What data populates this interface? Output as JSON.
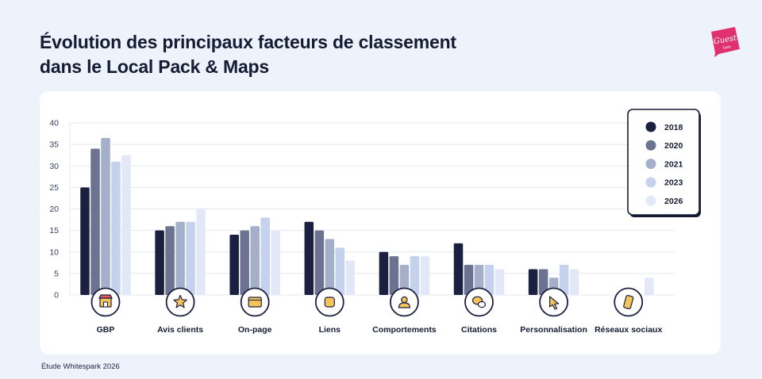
{
  "page": {
    "title_line1": "Évolution des principaux facteurs de classement",
    "title_line2": "dans le Local Pack & Maps",
    "source": "Étude Whitespark 2026",
    "logo_text": "Guest",
    "logo_subtext": "Suite"
  },
  "colors": {
    "background": "#eef2fb",
    "card": "#ffffff",
    "logo": "#e0306e",
    "series": [
      "#1b2040",
      "#6b7390",
      "#a4afc9",
      "#c5d2ee",
      "#e2e8f7"
    ]
  },
  "chart_data": {
    "type": "bar",
    "title": "Évolution des principaux facteurs de classement dans le Local Pack & Maps",
    "xlabel": "",
    "ylabel": "",
    "ylim": [
      0,
      40
    ],
    "yticks": [
      0,
      5,
      10,
      15,
      20,
      25,
      30,
      35,
      40
    ],
    "grid": true,
    "legend_position": "top-right",
    "categories": [
      "GBP",
      "Avis clients",
      "On-page",
      "Liens",
      "Comportements",
      "Citations",
      "Personnalisation",
      "Réseaux sociaux"
    ],
    "category_icons": [
      "storefront-icon",
      "star-icon",
      "webpage-icon",
      "link-icon",
      "user-icon",
      "chat-bubbles-icon",
      "cursor-click-icon",
      "smartphone-icon"
    ],
    "series": [
      {
        "name": "2018",
        "values": [
          25,
          15,
          14,
          17,
          10,
          12,
          6,
          0
        ]
      },
      {
        "name": "2020",
        "values": [
          34,
          16,
          15,
          15,
          9,
          7,
          6,
          0
        ]
      },
      {
        "name": "2021",
        "values": [
          36.5,
          17,
          16,
          13,
          7,
          7,
          4,
          0
        ]
      },
      {
        "name": "2023",
        "values": [
          31,
          17,
          18,
          11,
          9,
          7,
          7,
          0
        ]
      },
      {
        "name": "2026",
        "values": [
          32.5,
          20,
          15,
          8,
          9,
          6,
          6,
          4
        ]
      }
    ]
  }
}
